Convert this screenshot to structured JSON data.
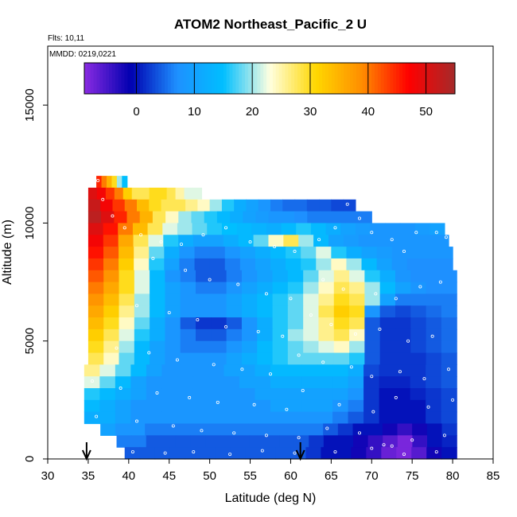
{
  "chart_data": {
    "type": "heatmap",
    "title": "ATOM2 Northeast_Pacific_2 U",
    "flights_label": "Flts: 10,11",
    "mmdd_label": "MMDD: 0219,0221",
    "xlabel": "Latitude (deg N)",
    "ylabel": "Altitude (m)",
    "xlim": [
      30,
      85
    ],
    "ylim": [
      0,
      17500
    ],
    "xticks": [
      30,
      35,
      40,
      45,
      50,
      55,
      60,
      65,
      70,
      75,
      80,
      85
    ],
    "yticks": [
      0,
      5000,
      10000,
      15000
    ],
    "colorbar": {
      "range": [
        -9,
        55
      ],
      "ticks": [
        0,
        10,
        20,
        30,
        40,
        50
      ],
      "colors": [
        "#8a2be2",
        "#0000b0",
        "#1e90ff",
        "#00bfff",
        "#ffffe0",
        "#ffd700",
        "#ff8c00",
        "#ff0000",
        "#a52a2a"
      ]
    },
    "arrows_latitude": [
      34.8,
      61.2
    ],
    "altitude_bins": [
      {
        "alt": [
          11500,
          12000
        ],
        "lat": [
          36.0,
          39.8
        ],
        "u": [
          45,
          40,
          35,
          30,
          20,
          15
        ]
      },
      {
        "alt": [
          11000,
          11500
        ],
        "lat": [
          35.0,
          49.0
        ],
        "u": [
          50,
          48,
          44,
          40,
          32,
          28,
          28,
          30,
          30,
          28,
          25,
          22,
          22
        ]
      },
      {
        "alt": [
          10500,
          11000
        ],
        "lat": [
          35.0,
          68.0
        ],
        "u": [
          52,
          48,
          44,
          40,
          34,
          30,
          28,
          28,
          26,
          24,
          20,
          16,
          12,
          10,
          8,
          6,
          5,
          5,
          4,
          4,
          3,
          3
        ]
      },
      {
        "alt": [
          10000,
          10500
        ],
        "lat": [
          35.0,
          70.0
        ],
        "u": [
          53,
          50,
          45,
          40,
          35,
          28,
          24,
          20,
          18,
          16,
          14,
          12,
          10,
          9,
          8,
          8,
          7,
          6,
          6,
          6,
          6,
          6
        ]
      },
      {
        "alt": [
          9500,
          10000
        ],
        "lat": [
          35.0,
          79.0
        ],
        "u": [
          50,
          46,
          40,
          34,
          28,
          22,
          20,
          18,
          16,
          15,
          14,
          13,
          12,
          14,
          16,
          14,
          12,
          10,
          9,
          8,
          8,
          8,
          9,
          10
        ]
      },
      {
        "alt": [
          9000,
          9500
        ],
        "lat": [
          35.0,
          79.5
        ],
        "u": [
          48,
          44,
          36,
          28,
          22,
          16,
          12,
          10,
          10,
          12,
          14,
          18,
          24,
          28,
          20,
          14,
          10,
          9,
          8,
          8,
          8,
          8,
          8,
          8
        ]
      },
      {
        "alt": [
          8500,
          9000
        ],
        "lat": [
          35.0,
          80.0
        ],
        "u": [
          46,
          42,
          34,
          26,
          18,
          12,
          8,
          6,
          6,
          8,
          10,
          12,
          14,
          16,
          18,
          22,
          16,
          12,
          10,
          9,
          8,
          8,
          8,
          8
        ]
      },
      {
        "alt": [
          8000,
          8500
        ],
        "lat": [
          35.0,
          80.0
        ],
        "u": [
          44,
          40,
          32,
          24,
          16,
          10,
          6,
          4,
          4,
          6,
          8,
          10,
          12,
          14,
          16,
          20,
          24,
          20,
          14,
          10,
          8,
          7,
          7,
          7
        ]
      },
      {
        "alt": [
          7500,
          8000
        ],
        "lat": [
          35.0,
          80.5
        ],
        "u": [
          42,
          38,
          30,
          22,
          14,
          8,
          6,
          4,
          4,
          6,
          8,
          10,
          12,
          14,
          18,
          22,
          26,
          22,
          16,
          12,
          8,
          7,
          7,
          7
        ]
      },
      {
        "alt": [
          7000,
          7500
        ],
        "lat": [
          35.0,
          80.5
        ],
        "u": [
          40,
          36,
          30,
          22,
          14,
          10,
          8,
          6,
          6,
          8,
          10,
          12,
          14,
          16,
          20,
          24,
          28,
          26,
          20,
          14,
          10,
          8,
          7,
          7
        ]
      },
      {
        "alt": [
          6500,
          7000
        ],
        "lat": [
          35.0,
          80.5
        ],
        "u": [
          38,
          34,
          28,
          20,
          14,
          10,
          8,
          8,
          8,
          10,
          12,
          14,
          16,
          18,
          22,
          26,
          30,
          28,
          20,
          10,
          6,
          6,
          6,
          6
        ]
      },
      {
        "alt": [
          6000,
          6500
        ],
        "lat": [
          35.0,
          80.5
        ],
        "u": [
          36,
          32,
          26,
          20,
          14,
          10,
          8,
          8,
          8,
          10,
          12,
          14,
          16,
          18,
          22,
          28,
          32,
          30,
          8,
          4,
          3,
          4,
          5,
          6
        ]
      },
      {
        "alt": [
          5500,
          6000
        ],
        "lat": [
          35.0,
          80.5
        ],
        "u": [
          34,
          30,
          24,
          18,
          12,
          8,
          4,
          2,
          2,
          4,
          8,
          12,
          16,
          18,
          22,
          26,
          30,
          28,
          4,
          2,
          2,
          3,
          4,
          5
        ]
      },
      {
        "alt": [
          5000,
          5500
        ],
        "lat": [
          35.0,
          80.5
        ],
        "u": [
          32,
          28,
          22,
          16,
          12,
          8,
          6,
          4,
          4,
          6,
          8,
          12,
          16,
          20,
          22,
          26,
          28,
          24,
          4,
          2,
          2,
          3,
          4,
          5
        ]
      },
      {
        "alt": [
          4500,
          5000
        ],
        "lat": [
          35.0,
          80.5
        ],
        "u": [
          30,
          26,
          20,
          14,
          10,
          8,
          6,
          6,
          6,
          8,
          10,
          14,
          16,
          18,
          20,
          22,
          24,
          20,
          4,
          2,
          2,
          3,
          4,
          5
        ]
      },
      {
        "alt": [
          4000,
          4500
        ],
        "lat": [
          35.0,
          80.5
        ],
        "u": [
          28,
          24,
          18,
          14,
          10,
          8,
          8,
          8,
          8,
          10,
          12,
          14,
          16,
          18,
          18,
          18,
          18,
          16,
          4,
          2,
          2,
          2,
          3,
          4
        ]
      },
      {
        "alt": [
          3500,
          4000
        ],
        "lat": [
          34.5,
          80.5
        ],
        "u": [
          26,
          22,
          18,
          14,
          10,
          8,
          8,
          8,
          8,
          10,
          10,
          12,
          14,
          14,
          14,
          14,
          14,
          12,
          3,
          2,
          2,
          2,
          3,
          4
        ]
      },
      {
        "alt": [
          3000,
          3500
        ],
        "lat": [
          34.5,
          80.5
        ],
        "u": [
          22,
          18,
          14,
          10,
          8,
          8,
          8,
          8,
          8,
          8,
          10,
          10,
          12,
          12,
          12,
          12,
          12,
          10,
          2,
          1,
          1,
          2,
          3,
          4
        ]
      },
      {
        "alt": [
          2500,
          3000
        ],
        "lat": [
          34.5,
          80.5
        ],
        "u": [
          16,
          14,
          12,
          10,
          8,
          8,
          8,
          8,
          8,
          8,
          8,
          10,
          10,
          10,
          10,
          10,
          10,
          8,
          2,
          0,
          0,
          1,
          2,
          3
        ]
      },
      {
        "alt": [
          2000,
          2500
        ],
        "lat": [
          34.5,
          80.5
        ],
        "u": [
          14,
          12,
          10,
          8,
          8,
          8,
          8,
          8,
          8,
          8,
          8,
          8,
          10,
          10,
          10,
          10,
          8,
          6,
          2,
          0,
          0,
          0,
          2,
          3
        ]
      },
      {
        "alt": [
          1500,
          2000
        ],
        "lat": [
          34.5,
          80.5
        ],
        "u": [
          12,
          12,
          10,
          8,
          8,
          8,
          8,
          8,
          8,
          8,
          8,
          8,
          8,
          8,
          8,
          8,
          6,
          4,
          2,
          0,
          0,
          0,
          2,
          3
        ]
      },
      {
        "alt": [
          1000,
          1500
        ],
        "lat": [
          36.5,
          80.5
        ],
        "u": [
          10,
          8,
          8,
          6,
          6,
          6,
          6,
          6,
          6,
          6,
          6,
          6,
          6,
          6,
          6,
          4,
          2,
          0,
          0,
          -2,
          -4,
          -2,
          0,
          2
        ]
      },
      {
        "alt": [
          500,
          1000
        ],
        "lat": [
          38.5,
          80.5
        ],
        "u": [
          6,
          6,
          4,
          4,
          4,
          4,
          4,
          4,
          4,
          4,
          4,
          4,
          4,
          2,
          0,
          0,
          -2,
          -4,
          -6,
          -8,
          -4,
          0,
          1
        ]
      },
      {
        "alt": [
          0,
          500
        ],
        "lat": [
          39.5,
          80.5
        ],
        "u": [
          4,
          4,
          4,
          4,
          4,
          4,
          4,
          4,
          4,
          4,
          4,
          4,
          2,
          0,
          0,
          -2,
          -4,
          -7,
          -8,
          -6,
          -2,
          0
        ]
      }
    ],
    "obs_points": [
      [
        36.2,
        11800
      ],
      [
        36.8,
        11000
      ],
      [
        38.0,
        10300
      ],
      [
        39.5,
        9800
      ],
      [
        41.5,
        9500
      ],
      [
        44.0,
        9200
      ],
      [
        46.5,
        9100
      ],
      [
        49.2,
        9500
      ],
      [
        52.0,
        9800
      ],
      [
        55.0,
        9200
      ],
      [
        58.0,
        9000
      ],
      [
        60.5,
        8800
      ],
      [
        63.5,
        9300
      ],
      [
        65.5,
        9800
      ],
      [
        67.0,
        10800
      ],
      [
        68.5,
        10200
      ],
      [
        70.0,
        9600
      ],
      [
        72.5,
        9300
      ],
      [
        74.0,
        8800
      ],
      [
        75.5,
        9600
      ],
      [
        78.0,
        9600
      ],
      [
        79.2,
        9400
      ],
      [
        43.0,
        8500
      ],
      [
        47.0,
        8000
      ],
      [
        50.0,
        7600
      ],
      [
        53.5,
        7400
      ],
      [
        57.0,
        7000
      ],
      [
        60.0,
        6800
      ],
      [
        64.0,
        7600
      ],
      [
        66.5,
        7200
      ],
      [
        70.5,
        7000
      ],
      [
        73.0,
        6800
      ],
      [
        76.0,
        7300
      ],
      [
        78.5,
        7500
      ],
      [
        41.0,
        6500
      ],
      [
        45.0,
        6200
      ],
      [
        48.5,
        5900
      ],
      [
        52.0,
        5600
      ],
      [
        56.0,
        5400
      ],
      [
        59.0,
        5200
      ],
      [
        62.5,
        6100
      ],
      [
        65.0,
        5700
      ],
      [
        68.0,
        5300
      ],
      [
        71.0,
        5500
      ],
      [
        74.5,
        5000
      ],
      [
        77.5,
        5200
      ],
      [
        38.5,
        4700
      ],
      [
        42.5,
        4500
      ],
      [
        46.0,
        4200
      ],
      [
        50.5,
        4000
      ],
      [
        54.0,
        3800
      ],
      [
        57.5,
        3600
      ],
      [
        61.0,
        4400
      ],
      [
        64.0,
        4100
      ],
      [
        67.5,
        3900
      ],
      [
        70.0,
        3500
      ],
      [
        73.5,
        3700
      ],
      [
        76.5,
        3400
      ],
      [
        79.5,
        3800
      ],
      [
        35.5,
        3300
      ],
      [
        39.0,
        3000
      ],
      [
        43.5,
        2800
      ],
      [
        47.5,
        2600
      ],
      [
        51.0,
        2400
      ],
      [
        55.5,
        2300
      ],
      [
        59.5,
        2100
      ],
      [
        61.5,
        2900
      ],
      [
        66.0,
        2300
      ],
      [
        70.2,
        2000
      ],
      [
        73.0,
        2600
      ],
      [
        77.0,
        2200
      ],
      [
        80.0,
        2500
      ],
      [
        36.0,
        1800
      ],
      [
        41.0,
        1600
      ],
      [
        45.5,
        1400
      ],
      [
        49.0,
        1200
      ],
      [
        53.0,
        1100
      ],
      [
        57.0,
        1000
      ],
      [
        61.0,
        900
      ],
      [
        64.5,
        1300
      ],
      [
        68.5,
        1100
      ],
      [
        71.5,
        600
      ],
      [
        72.5,
        550
      ],
      [
        75.0,
        800
      ],
      [
        79.0,
        1000
      ],
      [
        40.5,
        300
      ],
      [
        44.5,
        250
      ],
      [
        48.0,
        300
      ],
      [
        52.5,
        200
      ],
      [
        56.5,
        350
      ],
      [
        60.5,
        250
      ],
      [
        65.5,
        300
      ],
      [
        70.0,
        450
      ],
      [
        74.0,
        200
      ],
      [
        78.0,
        300
      ]
    ]
  }
}
